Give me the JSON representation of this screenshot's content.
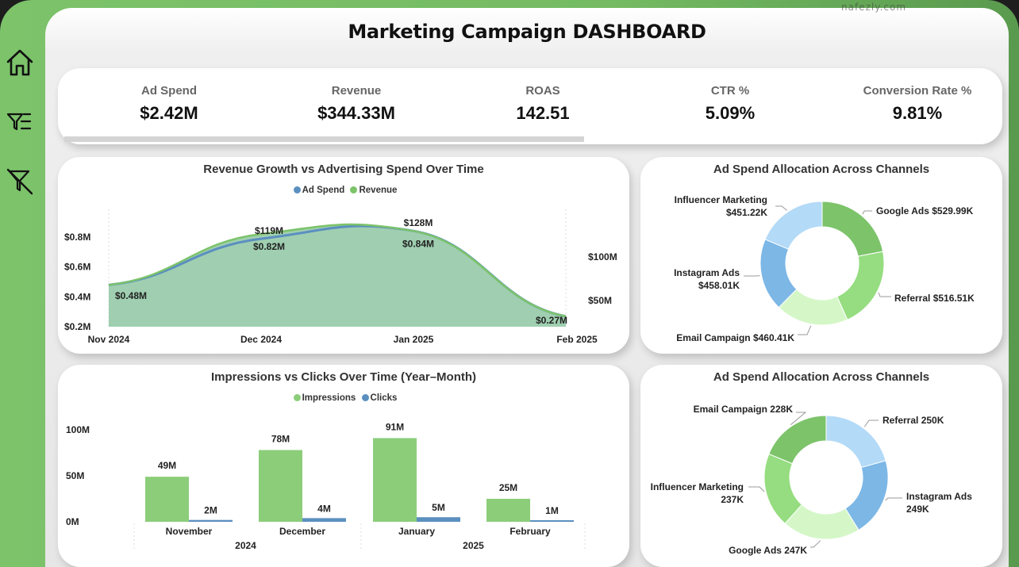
{
  "header": {
    "title": "Marketing Campaign DASHBOARD"
  },
  "sidebar": {
    "items": [
      {
        "icon": "home-icon",
        "label": "Home"
      },
      {
        "icon": "filter-list-icon",
        "label": "Filters"
      },
      {
        "icon": "clear-filter-icon",
        "label": "Clear filters"
      }
    ]
  },
  "kpis": [
    {
      "label": "Ad Spend",
      "value": "$2.42M"
    },
    {
      "label": "Revenue",
      "value": "$344.33M"
    },
    {
      "label": "ROAS",
      "value": "142.51"
    },
    {
      "label": "CTR %",
      "value": "5.09%"
    },
    {
      "label": "Conversion Rate %",
      "value": "9.81%"
    }
  ],
  "colors": {
    "brand_green": "#7cc36a",
    "ad_spend_blue": "#5b8fc0",
    "revenue_green": "#7cc36a",
    "area_fill": "#9fcfb0"
  },
  "watermark": "nafezly.com",
  "chart_data": [
    {
      "type": "area",
      "title": "Revenue Growth vs Advertising Spend Over Time",
      "categories": [
        "Nov 2024",
        "Dec 2024",
        "Jan 2025",
        "Feb 2025"
      ],
      "legend": [
        "Ad Spend",
        "Revenue"
      ],
      "legend_position": "top-center",
      "left_axis": {
        "ticks": [
          "$0.2M",
          "$0.4M",
          "$0.6M",
          "$0.8M"
        ],
        "range": [
          0.2,
          0.9
        ]
      },
      "right_axis": {
        "ticks": [
          "$50M",
          "$100M"
        ],
        "range": [
          20,
          140
        ]
      },
      "series": [
        {
          "name": "Ad Spend",
          "axis": "left",
          "values": [
            0.48,
            0.82,
            0.84,
            0.27
          ],
          "labels": [
            "$0.48M",
            "$0.82M",
            "$0.84M",
            "$0.27M"
          ]
        },
        {
          "name": "Revenue",
          "axis": "right",
          "values": [
            65,
            119,
            128,
            30
          ],
          "labels": [
            "",
            "$119M",
            "$128M",
            ""
          ]
        }
      ]
    },
    {
      "type": "pie",
      "title": "Ad Spend Allocation Across Channels",
      "donut": true,
      "slices": [
        {
          "label": "Google Ads",
          "value": 529.99,
          "display": "Google Ads $529.99K",
          "color": "#7cc36a"
        },
        {
          "label": "Referral",
          "value": 516.51,
          "display": "Referral $516.51K",
          "color": "#95dd80"
        },
        {
          "label": "Email Campaign",
          "value": 460.41,
          "display": "Email Campaign $460.41K",
          "color": "#d5f7c8"
        },
        {
          "label": "Instagram Ads",
          "value": 458.01,
          "display": "Instagram Ads\n$458.01K",
          "color": "#7cb7e6"
        },
        {
          "label": "Influencer Marketing",
          "value": 451.22,
          "display": "Influencer Marketing\n$451.22K",
          "color": "#b3daf7"
        }
      ]
    },
    {
      "type": "bar",
      "title": "Impressions vs Clicks Over Time (Year–Month)",
      "categories": [
        "November",
        "December",
        "January",
        "February"
      ],
      "years": [
        {
          "label": "2024",
          "span": [
            0,
            1
          ]
        },
        {
          "label": "2025",
          "span": [
            2,
            3
          ]
        }
      ],
      "legend": [
        "Impressions",
        "Clicks"
      ],
      "legend_position": "top-center",
      "y_ticks": [
        "0M",
        "50M",
        "100M"
      ],
      "ylim": [
        0,
        100
      ],
      "series": [
        {
          "name": "Impressions",
          "values": [
            49,
            78,
            91,
            25
          ],
          "labels": [
            "49M",
            "78M",
            "91M",
            "25M"
          ],
          "color": "#8ccd7a"
        },
        {
          "name": "Clicks",
          "values": [
            2,
            4,
            5,
            1
          ],
          "labels": [
            "2M",
            "4M",
            "5M",
            "1M"
          ],
          "color": "#5b8fc0"
        }
      ]
    },
    {
      "type": "pie",
      "title": "Ad Spend Allocation Across Channels",
      "donut": true,
      "slices": [
        {
          "label": "Referral",
          "value": 250,
          "display": "Referral 250K",
          "color": "#b3daf7"
        },
        {
          "label": "Instagram Ads",
          "value": 249,
          "display": "Instagram Ads\n249K",
          "color": "#7cb7e6"
        },
        {
          "label": "Google Ads",
          "value": 247,
          "display": "Google Ads 247K",
          "color": "#d5f7c8"
        },
        {
          "label": "Influencer Marketing",
          "value": 237,
          "display": "Influencer Marketing\n237K",
          "color": "#95dd80"
        },
        {
          "label": "Email Campaign",
          "value": 228,
          "display": "Email Campaign 228K",
          "color": "#7cc36a"
        }
      ]
    }
  ]
}
